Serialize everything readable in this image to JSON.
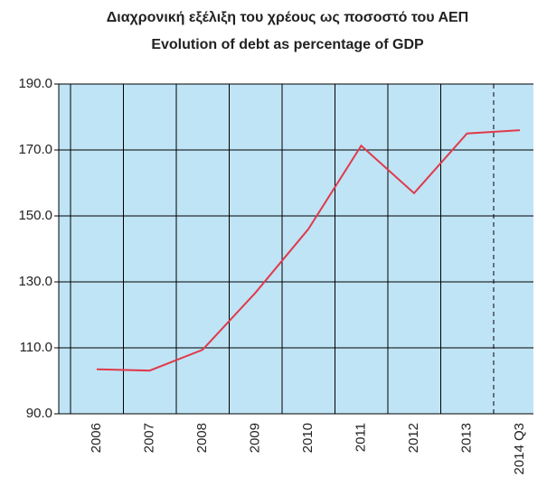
{
  "chart_data": {
    "type": "line",
    "title": "Διαχρονική εξέλιξη του χρέους ως ποσοστό του ΑΕΠ",
    "subtitle": "Evolution of debt as percentage of GDP",
    "categories": [
      "2006",
      "2007",
      "2008",
      "2009",
      "2010",
      "2011",
      "2012",
      "2013",
      "2014 Q3"
    ],
    "series": [
      {
        "name": null,
        "color": "#e03a4a",
        "values": [
          103.5,
          103.1,
          109.4,
          126.7,
          146.0,
          171.3,
          156.9,
          175.0,
          176.0
        ]
      }
    ],
    "ylim": [
      90,
      190
    ],
    "yticks": [
      {
        "value": 90,
        "label": "90.0"
      },
      {
        "value": 110,
        "label": "110.0"
      },
      {
        "value": 130,
        "label": "130.0"
      },
      {
        "value": 150,
        "label": "150.0"
      },
      {
        "value": 170,
        "label": "170.0"
      },
      {
        "value": 190,
        "label": "190.0"
      }
    ],
    "grid": true
  }
}
